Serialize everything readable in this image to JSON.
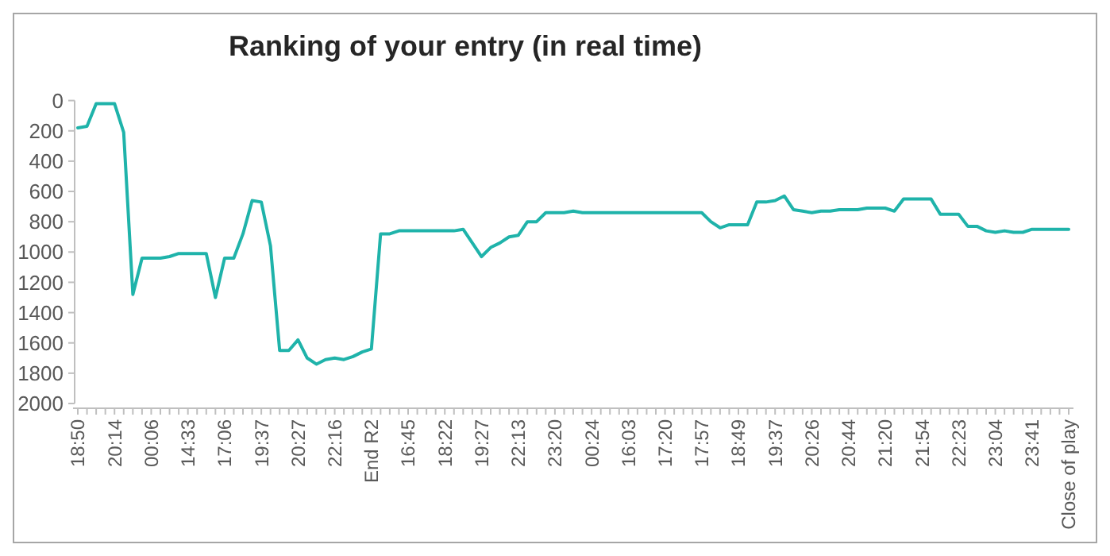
{
  "chart_data": {
    "type": "line",
    "title": "Ranking of your entry (in real time)",
    "categories": [
      "18:50",
      null,
      null,
      null,
      "20:14",
      null,
      null,
      null,
      "00:06",
      null,
      null,
      null,
      "14:33",
      null,
      null,
      null,
      "17:06",
      null,
      null,
      null,
      "19:37",
      null,
      null,
      null,
      "20:27",
      null,
      null,
      null,
      "22:16",
      null,
      null,
      null,
      "End R2",
      null,
      null,
      null,
      "16:45",
      null,
      null,
      null,
      "18:22",
      null,
      null,
      null,
      "19:27",
      null,
      null,
      null,
      "22:13",
      null,
      null,
      null,
      "23:20",
      null,
      null,
      null,
      "00:24",
      null,
      null,
      null,
      "16:03",
      null,
      null,
      null,
      "17:20",
      null,
      null,
      null,
      "17:57",
      null,
      null,
      null,
      "18:49",
      null,
      null,
      null,
      "19:37",
      null,
      null,
      null,
      "20:26",
      null,
      null,
      null,
      "20:44",
      null,
      null,
      null,
      "21:20",
      null,
      null,
      null,
      "21:54",
      null,
      null,
      null,
      "22:23",
      null,
      null,
      null,
      "23:04",
      null,
      null,
      null,
      "23:41",
      null,
      null,
      null,
      "Close of play"
    ],
    "series": [
      {
        "color": "#1fb3aa",
        "values": [
          180,
          170,
          20,
          20,
          20,
          210,
          1280,
          1040,
          1040,
          1040,
          1030,
          1010,
          1010,
          1010,
          1010,
          1300,
          1040,
          1040,
          880,
          660,
          670,
          960,
          1650,
          1650,
          1580,
          1700,
          1740,
          1710,
          1700,
          1710,
          1690,
          1660,
          1640,
          880,
          880,
          860,
          860,
          860,
          860,
          860,
          860,
          860,
          850,
          940,
          1030,
          970,
          940,
          900,
          890,
          800,
          800,
          740,
          740,
          740,
          730,
          740,
          740,
          740,
          740,
          740,
          740,
          740,
          740,
          740,
          740,
          740,
          740,
          740,
          740,
          800,
          840,
          820,
          820,
          820,
          670,
          670,
          660,
          630,
          720,
          730,
          740,
          730,
          730,
          720,
          720,
          720,
          710,
          710,
          710,
          730,
          650,
          650,
          650,
          650,
          750,
          750,
          750,
          830,
          830,
          860,
          870,
          860,
          870,
          870,
          850,
          850,
          850,
          850,
          850
        ]
      }
    ],
    "ylim": [
      2000,
      0
    ],
    "yticks": [
      0,
      200,
      400,
      600,
      800,
      1000,
      1200,
      1400,
      1600,
      1800,
      2000
    ],
    "grid": false,
    "marker": "none",
    "line_style": "solid"
  }
}
